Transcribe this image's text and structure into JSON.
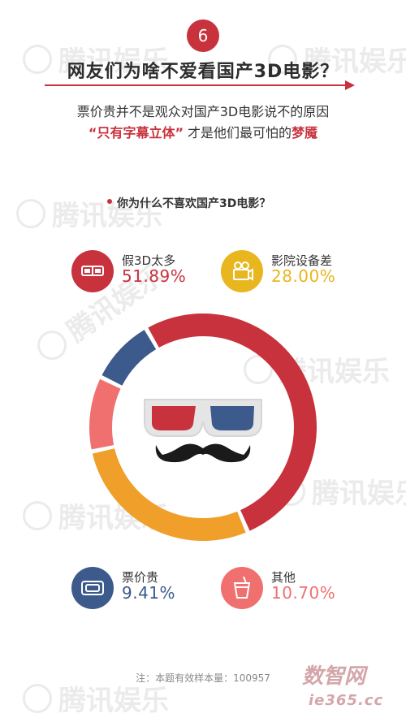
{
  "watermark": "腾讯娱乐",
  "step_number": "6",
  "headline": "网友们为啥不爱看国产3D电影？",
  "subtitle_line1": "票价贵并不是观众对国产3D电影说不的原因",
  "subtitle_line2": {
    "quote": "“只有字幕立体”",
    "middle": " 才是他们最可怕的",
    "emphasis": "梦魇"
  },
  "question": "你为什么不喜欢国产3D电影？",
  "note": "注：本题有效样本量：100957",
  "brand_mark": "数智网",
  "brand_url": "ie365.cc",
  "colors": {
    "red": "#c8323d",
    "yellow": "#e8b61e",
    "navy": "#3c5a8c",
    "pink": "#f07070"
  },
  "legend": [
    {
      "label": "假3D太多",
      "value": "51.89%",
      "icon": "3d-glasses-icon",
      "color": "#c8323d"
    },
    {
      "label": "影院设备差",
      "value": "28.00%",
      "icon": "movie-camera-icon",
      "color": "#e8b61e"
    },
    {
      "label": "票价贵",
      "value": "9.41%",
      "icon": "ticket-icon",
      "color": "#3c5a8c"
    },
    {
      "label": "其他",
      "value": "10.70%",
      "icon": "drink-cup-icon",
      "color": "#f07070"
    }
  ],
  "chart_data": {
    "type": "pie",
    "variant": "donut",
    "title": "你为什么不喜欢国产3D电影？",
    "categories": [
      "假3D太多",
      "影院设备差",
      "其他",
      "票价贵"
    ],
    "values": [
      51.89,
      28.0,
      10.7,
      9.41
    ],
    "unit": "%",
    "colors": [
      "#c8323d",
      "#ef9f2a",
      "#f07070",
      "#3c5a8c"
    ],
    "center_graphic": "3d-glasses-and-mustache",
    "legend": "around-chart"
  }
}
